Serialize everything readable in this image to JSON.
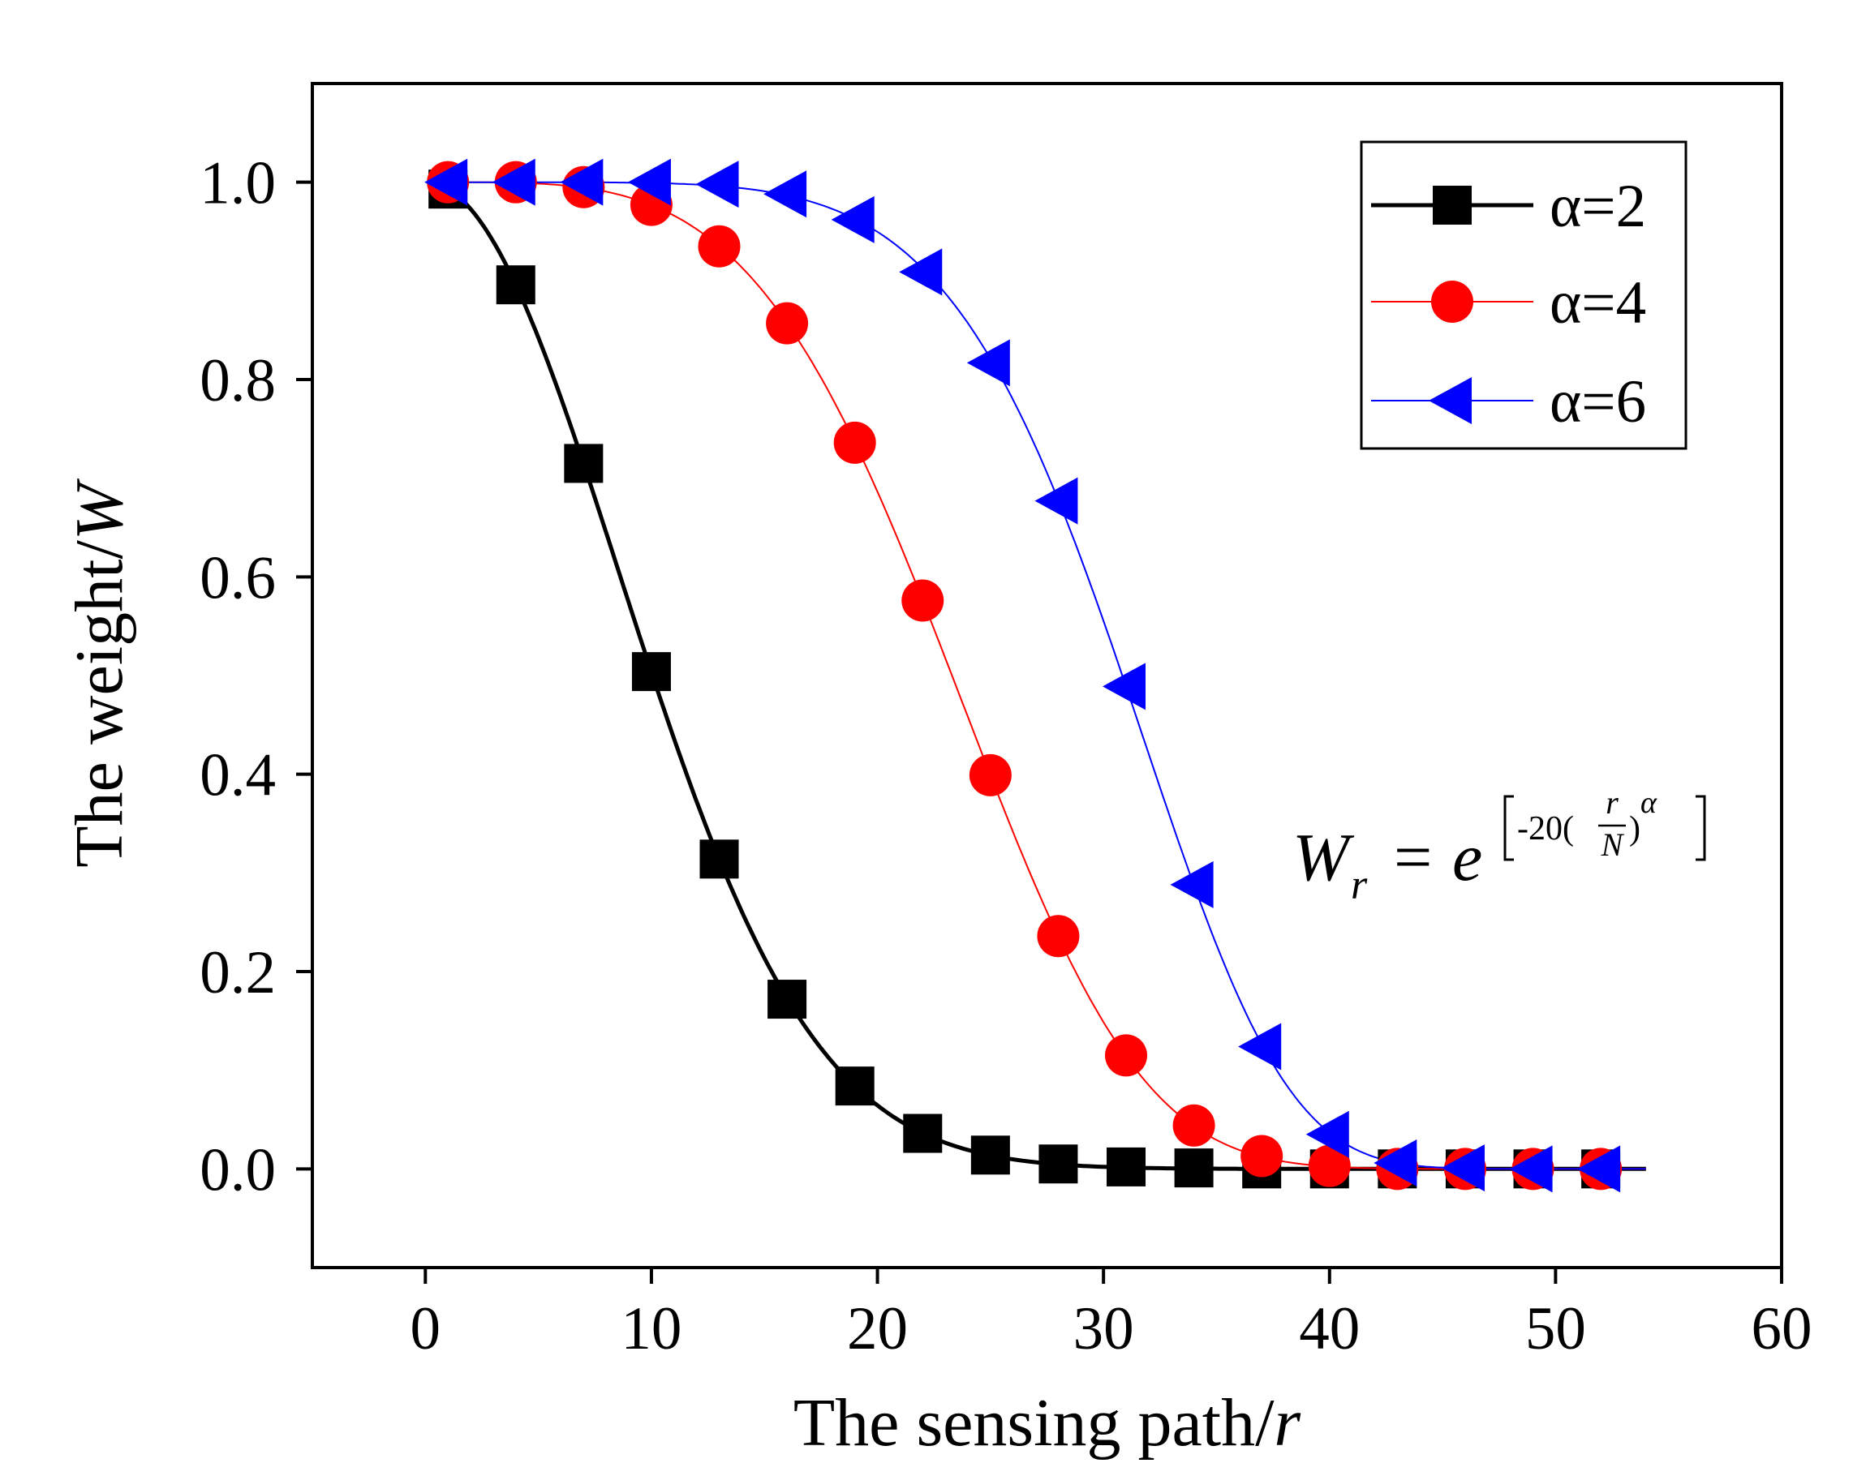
{
  "chart_data": {
    "type": "line",
    "title": "",
    "xlabel": {
      "prefix": "The sensing path/",
      "var": "r"
    },
    "ylabel": {
      "prefix": "The weight/",
      "var": "W"
    },
    "xlim": [
      -5,
      60
    ],
    "ylim": [
      -0.1,
      1.1
    ],
    "xticks": [
      0,
      10,
      20,
      30,
      40,
      50,
      60
    ],
    "yticks": [
      0.0,
      0.2,
      0.4,
      0.6,
      0.8,
      1.0
    ],
    "xtick_labels": [
      "0",
      "10",
      "20",
      "30",
      "40",
      "50",
      "60"
    ],
    "ytick_labels": [
      "0.0",
      "0.2",
      "0.4",
      "0.6",
      "0.8",
      "1.0"
    ],
    "grid": false,
    "legend_position": "top-right",
    "curve": {
      "N": 54,
      "coef": -20,
      "x_start": 1,
      "x_end": 54
    },
    "x": [
      1,
      4,
      7,
      10,
      13,
      16,
      19,
      22,
      25,
      28,
      31,
      34,
      37,
      40,
      43,
      46,
      49,
      52
    ],
    "series": [
      {
        "name": "α=2",
        "alpha": 2,
        "marker": "square",
        "color": "#000000",
        "values": [
          0.993,
          0.896,
          0.715,
          0.504,
          0.314,
          0.172,
          0.084,
          0.036,
          0.014,
          0.005,
          0.002,
          0.001,
          0.0,
          0.0,
          0.0,
          0.0,
          0.0,
          0.0
        ]
      },
      {
        "name": "α=4",
        "alpha": 4,
        "marker": "circle",
        "color": "#ff0000",
        "values": [
          1.0,
          1.0,
          0.995,
          0.977,
          0.935,
          0.857,
          0.736,
          0.576,
          0.399,
          0.236,
          0.115,
          0.044,
          0.013,
          0.003,
          0.0,
          0.0,
          0.0,
          0.0
        ]
      },
      {
        "name": "α=6",
        "alpha": 6,
        "marker": "triangle-left",
        "color": "#0000ff",
        "values": [
          1.0,
          1.0,
          1.0,
          1.0,
          0.998,
          0.988,
          0.962,
          0.909,
          0.817,
          0.677,
          0.489,
          0.288,
          0.124,
          0.035,
          0.006,
          0.001,
          0.0,
          0.0
        ]
      }
    ],
    "annotation": {
      "lhs": "W",
      "lhs_sub": "r",
      "equals": "=",
      "base": "e",
      "coef_text": "-20(",
      "frac_num": "r",
      "frac_den": "N",
      "close_paren": ")",
      "exponent": "α"
    }
  }
}
